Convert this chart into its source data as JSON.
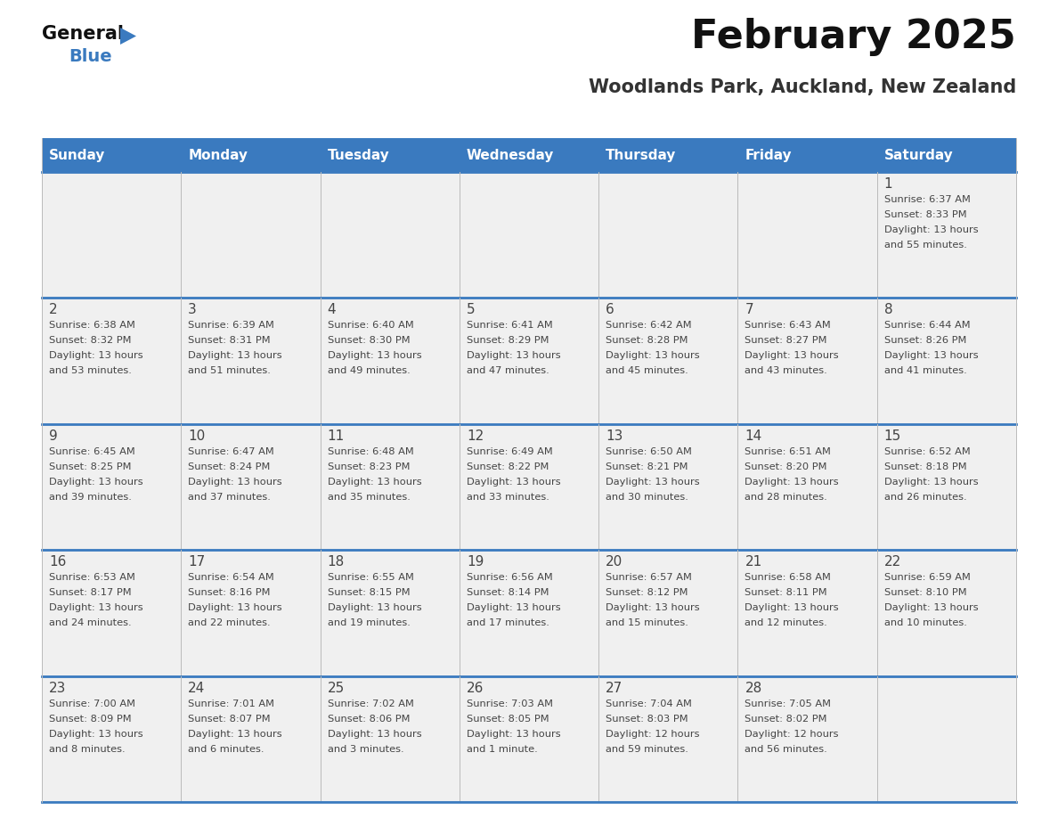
{
  "title": "February 2025",
  "subtitle": "Woodlands Park, Auckland, New Zealand",
  "days_of_week": [
    "Sunday",
    "Monday",
    "Tuesday",
    "Wednesday",
    "Thursday",
    "Friday",
    "Saturday"
  ],
  "header_bg": "#3a7abf",
  "header_text": "#ffffff",
  "cell_bg": "#f0f0f0",
  "border_color": "#3a7abf",
  "border_color_light": "#bbbbbb",
  "text_color": "#444444",
  "calendar": [
    [
      {
        "day": null,
        "lines": []
      },
      {
        "day": null,
        "lines": []
      },
      {
        "day": null,
        "lines": []
      },
      {
        "day": null,
        "lines": []
      },
      {
        "day": null,
        "lines": []
      },
      {
        "day": null,
        "lines": []
      },
      {
        "day": 1,
        "lines": [
          "Sunrise: 6:37 AM",
          "Sunset: 8:33 PM",
          "Daylight: 13 hours",
          "and 55 minutes."
        ]
      }
    ],
    [
      {
        "day": 2,
        "lines": [
          "Sunrise: 6:38 AM",
          "Sunset: 8:32 PM",
          "Daylight: 13 hours",
          "and 53 minutes."
        ]
      },
      {
        "day": 3,
        "lines": [
          "Sunrise: 6:39 AM",
          "Sunset: 8:31 PM",
          "Daylight: 13 hours",
          "and 51 minutes."
        ]
      },
      {
        "day": 4,
        "lines": [
          "Sunrise: 6:40 AM",
          "Sunset: 8:30 PM",
          "Daylight: 13 hours",
          "and 49 minutes."
        ]
      },
      {
        "day": 5,
        "lines": [
          "Sunrise: 6:41 AM",
          "Sunset: 8:29 PM",
          "Daylight: 13 hours",
          "and 47 minutes."
        ]
      },
      {
        "day": 6,
        "lines": [
          "Sunrise: 6:42 AM",
          "Sunset: 8:28 PM",
          "Daylight: 13 hours",
          "and 45 minutes."
        ]
      },
      {
        "day": 7,
        "lines": [
          "Sunrise: 6:43 AM",
          "Sunset: 8:27 PM",
          "Daylight: 13 hours",
          "and 43 minutes."
        ]
      },
      {
        "day": 8,
        "lines": [
          "Sunrise: 6:44 AM",
          "Sunset: 8:26 PM",
          "Daylight: 13 hours",
          "and 41 minutes."
        ]
      }
    ],
    [
      {
        "day": 9,
        "lines": [
          "Sunrise: 6:45 AM",
          "Sunset: 8:25 PM",
          "Daylight: 13 hours",
          "and 39 minutes."
        ]
      },
      {
        "day": 10,
        "lines": [
          "Sunrise: 6:47 AM",
          "Sunset: 8:24 PM",
          "Daylight: 13 hours",
          "and 37 minutes."
        ]
      },
      {
        "day": 11,
        "lines": [
          "Sunrise: 6:48 AM",
          "Sunset: 8:23 PM",
          "Daylight: 13 hours",
          "and 35 minutes."
        ]
      },
      {
        "day": 12,
        "lines": [
          "Sunrise: 6:49 AM",
          "Sunset: 8:22 PM",
          "Daylight: 13 hours",
          "and 33 minutes."
        ]
      },
      {
        "day": 13,
        "lines": [
          "Sunrise: 6:50 AM",
          "Sunset: 8:21 PM",
          "Daylight: 13 hours",
          "and 30 minutes."
        ]
      },
      {
        "day": 14,
        "lines": [
          "Sunrise: 6:51 AM",
          "Sunset: 8:20 PM",
          "Daylight: 13 hours",
          "and 28 minutes."
        ]
      },
      {
        "day": 15,
        "lines": [
          "Sunrise: 6:52 AM",
          "Sunset: 8:18 PM",
          "Daylight: 13 hours",
          "and 26 minutes."
        ]
      }
    ],
    [
      {
        "day": 16,
        "lines": [
          "Sunrise: 6:53 AM",
          "Sunset: 8:17 PM",
          "Daylight: 13 hours",
          "and 24 minutes."
        ]
      },
      {
        "day": 17,
        "lines": [
          "Sunrise: 6:54 AM",
          "Sunset: 8:16 PM",
          "Daylight: 13 hours",
          "and 22 minutes."
        ]
      },
      {
        "day": 18,
        "lines": [
          "Sunrise: 6:55 AM",
          "Sunset: 8:15 PM",
          "Daylight: 13 hours",
          "and 19 minutes."
        ]
      },
      {
        "day": 19,
        "lines": [
          "Sunrise: 6:56 AM",
          "Sunset: 8:14 PM",
          "Daylight: 13 hours",
          "and 17 minutes."
        ]
      },
      {
        "day": 20,
        "lines": [
          "Sunrise: 6:57 AM",
          "Sunset: 8:12 PM",
          "Daylight: 13 hours",
          "and 15 minutes."
        ]
      },
      {
        "day": 21,
        "lines": [
          "Sunrise: 6:58 AM",
          "Sunset: 8:11 PM",
          "Daylight: 13 hours",
          "and 12 minutes."
        ]
      },
      {
        "day": 22,
        "lines": [
          "Sunrise: 6:59 AM",
          "Sunset: 8:10 PM",
          "Daylight: 13 hours",
          "and 10 minutes."
        ]
      }
    ],
    [
      {
        "day": 23,
        "lines": [
          "Sunrise: 7:00 AM",
          "Sunset: 8:09 PM",
          "Daylight: 13 hours",
          "and 8 minutes."
        ]
      },
      {
        "day": 24,
        "lines": [
          "Sunrise: 7:01 AM",
          "Sunset: 8:07 PM",
          "Daylight: 13 hours",
          "and 6 minutes."
        ]
      },
      {
        "day": 25,
        "lines": [
          "Sunrise: 7:02 AM",
          "Sunset: 8:06 PM",
          "Daylight: 13 hours",
          "and 3 minutes."
        ]
      },
      {
        "day": 26,
        "lines": [
          "Sunrise: 7:03 AM",
          "Sunset: 8:05 PM",
          "Daylight: 13 hours",
          "and 1 minute."
        ]
      },
      {
        "day": 27,
        "lines": [
          "Sunrise: 7:04 AM",
          "Sunset: 8:03 PM",
          "Daylight: 12 hours",
          "and 59 minutes."
        ]
      },
      {
        "day": 28,
        "lines": [
          "Sunrise: 7:05 AM",
          "Sunset: 8:02 PM",
          "Daylight: 12 hours",
          "and 56 minutes."
        ]
      },
      {
        "day": null,
        "lines": []
      }
    ]
  ],
  "logo_general_color": "#111111",
  "logo_blue_color": "#3a7abf",
  "logo_triangle_color": "#3a7abf"
}
